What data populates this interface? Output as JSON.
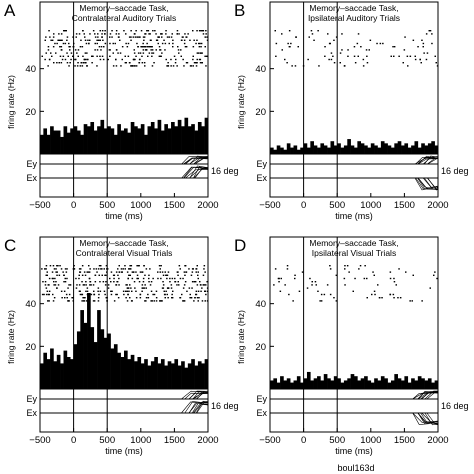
{
  "figure_id": "boul163d",
  "chart_data": [
    {
      "type": "bar",
      "panel_label": "A",
      "title": [
        "Memory–saccade Task,",
        "Contralateral Auditory Trials"
      ],
      "xlabel": "time (ms)",
      "ylabel": "firing rate (Hz)",
      "xlim": [
        -500,
        2000
      ],
      "ylim": [
        0,
        60
      ],
      "xticks": [
        -500,
        0,
        500,
        1000,
        1500,
        2000
      ],
      "yticks": [
        20,
        40
      ],
      "vlines": [
        0,
        500
      ],
      "eye_labels": [
        "Ey",
        "Ex"
      ],
      "eye_scale": "16 deg",
      "raster_density": 0.45,
      "bin_width_ms": 50,
      "x": [
        -475,
        -425,
        -375,
        -325,
        -275,
        -225,
        -175,
        -125,
        -75,
        -25,
        25,
        75,
        125,
        175,
        225,
        275,
        325,
        375,
        425,
        475,
        525,
        575,
        625,
        675,
        725,
        775,
        825,
        875,
        925,
        975,
        1025,
        1075,
        1125,
        1175,
        1225,
        1275,
        1325,
        1375,
        1425,
        1475,
        1525,
        1575,
        1625,
        1675,
        1725,
        1775,
        1825,
        1875,
        1925,
        1975
      ],
      "values": [
        9,
        12,
        9,
        13,
        11,
        11,
        8,
        13,
        10,
        12,
        13,
        11,
        9,
        14,
        13,
        15,
        11,
        13,
        16,
        12,
        13,
        12,
        9,
        14,
        11,
        12,
        10,
        15,
        13,
        12,
        14,
        9,
        13,
        15,
        12,
        16,
        11,
        14,
        12,
        15,
        13,
        16,
        13,
        17,
        13,
        14,
        11,
        15,
        13,
        17
      ]
    },
    {
      "type": "bar",
      "panel_label": "B",
      "title": [
        "Memory–saccade Task,",
        "Ipsilateral Auditory Trials"
      ],
      "xlabel": "time (ms)",
      "ylabel": "firing rate (Hz)",
      "xlim": [
        -500,
        2000
      ],
      "ylim": [
        0,
        60
      ],
      "xticks": [
        -500,
        0,
        500,
        1000,
        1500,
        2000
      ],
      "yticks": [
        20,
        40
      ],
      "vlines": [
        0,
        500
      ],
      "eye_labels": [
        "Ey",
        "Ex"
      ],
      "eye_scale": "16 deg",
      "raster_density": 0.1,
      "bin_width_ms": 50,
      "x": [
        -475,
        -425,
        -375,
        -325,
        -275,
        -225,
        -175,
        -125,
        -75,
        -25,
        25,
        75,
        125,
        175,
        225,
        275,
        325,
        375,
        425,
        475,
        525,
        575,
        625,
        675,
        725,
        775,
        825,
        875,
        925,
        975,
        1025,
        1075,
        1125,
        1175,
        1225,
        1275,
        1325,
        1375,
        1425,
        1475,
        1525,
        1575,
        1625,
        1675,
        1725,
        1775,
        1825,
        1875,
        1925,
        1975
      ],
      "values": [
        3,
        2,
        4,
        3,
        2,
        5,
        3,
        4,
        2,
        3,
        5,
        3,
        6,
        4,
        3,
        5,
        4,
        3,
        6,
        4,
        5,
        3,
        4,
        7,
        4,
        3,
        6,
        5,
        4,
        3,
        5,
        4,
        3,
        6,
        5,
        4,
        3,
        5,
        6,
        4,
        5,
        3,
        4,
        6,
        3,
        5,
        4,
        5,
        6,
        4
      ]
    },
    {
      "type": "bar",
      "panel_label": "C",
      "title": [
        "Memory–saccade Task,",
        "Contralateral Visual Trials"
      ],
      "xlabel": "time (ms)",
      "ylabel": "firing rate (Hz)",
      "xlim": [
        -500,
        2000
      ],
      "ylim": [
        0,
        60
      ],
      "xticks": [
        -500,
        0,
        500,
        1000,
        1500,
        2000
      ],
      "yticks": [
        20,
        40
      ],
      "vlines": [
        0,
        500
      ],
      "eye_labels": [
        "Ey",
        "Ex"
      ],
      "eye_scale": "16 deg",
      "raster_density": 0.5,
      "bin_width_ms": 50,
      "x": [
        -475,
        -425,
        -375,
        -325,
        -275,
        -225,
        -175,
        -125,
        -75,
        -25,
        25,
        75,
        125,
        175,
        225,
        275,
        325,
        375,
        425,
        475,
        525,
        575,
        625,
        675,
        725,
        775,
        825,
        875,
        925,
        975,
        1025,
        1075,
        1125,
        1175,
        1225,
        1275,
        1325,
        1375,
        1425,
        1475,
        1525,
        1575,
        1625,
        1675,
        1725,
        1775,
        1825,
        1875,
        1925,
        1975
      ],
      "values": [
        12,
        17,
        14,
        19,
        13,
        16,
        12,
        18,
        15,
        14,
        21,
        27,
        37,
        31,
        45,
        29,
        22,
        37,
        28,
        24,
        26,
        19,
        21,
        17,
        15,
        18,
        14,
        16,
        13,
        15,
        12,
        14,
        11,
        13,
        15,
        12,
        14,
        11,
        13,
        12,
        14,
        11,
        13,
        10,
        12,
        14,
        11,
        13,
        12,
        14
      ]
    },
    {
      "type": "bar",
      "panel_label": "D",
      "title": [
        "Memory–saccade Task,",
        "Ipsilateral Visual Trials"
      ],
      "xlabel": "time (ms)",
      "ylabel": "firing rate (Hz)",
      "xlim": [
        -500,
        2000
      ],
      "ylim": [
        0,
        60
      ],
      "xticks": [
        -500,
        0,
        500,
        1000,
        1500,
        2000
      ],
      "yticks": [
        20,
        40
      ],
      "vlines": [
        0,
        500
      ],
      "eye_labels": [
        "Ey",
        "Ex"
      ],
      "eye_scale": "16 deg",
      "raster_density": 0.1,
      "bin_width_ms": 50,
      "x": [
        -475,
        -425,
        -375,
        -325,
        -275,
        -225,
        -175,
        -125,
        -75,
        -25,
        25,
        75,
        125,
        175,
        225,
        275,
        325,
        375,
        425,
        475,
        525,
        575,
        625,
        675,
        725,
        775,
        825,
        875,
        925,
        975,
        1025,
        1075,
        1125,
        1175,
        1225,
        1275,
        1325,
        1375,
        1425,
        1475,
        1525,
        1575,
        1625,
        1675,
        1725,
        1775,
        1825,
        1875,
        1925,
        1975
      ],
      "values": [
        4,
        5,
        3,
        6,
        4,
        5,
        3,
        4,
        6,
        3,
        5,
        8,
        4,
        5,
        6,
        4,
        7,
        5,
        4,
        6,
        5,
        3,
        4,
        5,
        7,
        6,
        4,
        5,
        6,
        4,
        3,
        5,
        4,
        6,
        5,
        3,
        4,
        7,
        5,
        4,
        6,
        3,
        5,
        4,
        6,
        5,
        4,
        5,
        3,
        4
      ]
    }
  ]
}
